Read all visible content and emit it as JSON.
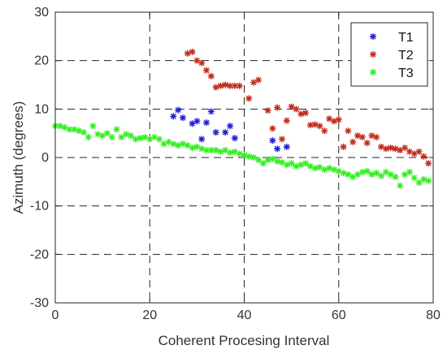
{
  "chart_data": {
    "type": "scatter",
    "xlabel": "Coherent Procesing Interval",
    "ylabel": "Azimuth (degrees)",
    "xlim": [
      0,
      80
    ],
    "ylim": [
      -30,
      30
    ],
    "xticks": [
      "0",
      "20",
      "40",
      "60",
      "80"
    ],
    "yticks": [
      "30",
      "20",
      "10",
      "0",
      "-10",
      "-20",
      "-30"
    ],
    "grid": true,
    "legend_position": "top-right",
    "marker": "asterisk",
    "series": [
      {
        "name": "T1",
        "color": "#1f1fd6",
        "points": [
          [
            25,
            8.5
          ],
          [
            26,
            9.8
          ],
          [
            27,
            8.2
          ],
          [
            29,
            7
          ],
          [
            30,
            7.5
          ],
          [
            31,
            3.8
          ],
          [
            32,
            7.2
          ],
          [
            33,
            9.5
          ],
          [
            34,
            5.2
          ],
          [
            36,
            5.2
          ],
          [
            37,
            6.5
          ],
          [
            38,
            4
          ],
          [
            46,
            3.5
          ],
          [
            47,
            1.8
          ],
          [
            49,
            2.2
          ]
        ]
      },
      {
        "name": "T2",
        "color": "#c42a1a",
        "points": [
          [
            28,
            21.5
          ],
          [
            29,
            21.8
          ],
          [
            30,
            20
          ],
          [
            31,
            19.5
          ],
          [
            32,
            18
          ],
          [
            33,
            16.8
          ],
          [
            34,
            14.5
          ],
          [
            35,
            14.8
          ],
          [
            36,
            15
          ],
          [
            37,
            14.8
          ],
          [
            38,
            14.8
          ],
          [
            39,
            14.8
          ],
          [
            41,
            12.2
          ],
          [
            42,
            15.5
          ],
          [
            43,
            16
          ],
          [
            45,
            9.7
          ],
          [
            46,
            6
          ],
          [
            47,
            10.3
          ],
          [
            48,
            3.8
          ],
          [
            49,
            7.6
          ],
          [
            50,
            10.5
          ],
          [
            51,
            10
          ],
          [
            52,
            9
          ],
          [
            53,
            9.2
          ],
          [
            54,
            6.7
          ],
          [
            55,
            6.8
          ],
          [
            56,
            6.5
          ],
          [
            57,
            5.5
          ],
          [
            58,
            8
          ],
          [
            59,
            7.5
          ],
          [
            60,
            7.8
          ],
          [
            61,
            2.2
          ],
          [
            62,
            5.5
          ],
          [
            63,
            3.2
          ],
          [
            64,
            4.5
          ],
          [
            65,
            4.2
          ],
          [
            66,
            3
          ],
          [
            67,
            4.5
          ],
          [
            68,
            4.2
          ],
          [
            69,
            2.2
          ],
          [
            70,
            1.8
          ],
          [
            71,
            2
          ],
          [
            72,
            1.8
          ],
          [
            73,
            1.5
          ],
          [
            74,
            2
          ],
          [
            75,
            1.2
          ],
          [
            76,
            0.8
          ],
          [
            77,
            1.2
          ],
          [
            78,
            0.2
          ],
          [
            79,
            -1.2
          ]
        ]
      },
      {
        "name": "T3",
        "color": "#33ee22",
        "points": [
          [
            0,
            6.5
          ],
          [
            1,
            6.5
          ],
          [
            2,
            6.2
          ],
          [
            3,
            5.8
          ],
          [
            4,
            5.8
          ],
          [
            5,
            5.5
          ],
          [
            6,
            5.2
          ],
          [
            7,
            4.2
          ],
          [
            8,
            6.5
          ],
          [
            9,
            4.8
          ],
          [
            10,
            4.5
          ],
          [
            11,
            5
          ],
          [
            12,
            4.2
          ],
          [
            13,
            5.8
          ],
          [
            14,
            4.2
          ],
          [
            15,
            4.8
          ],
          [
            16,
            4.5
          ],
          [
            17,
            3.8
          ],
          [
            18,
            4
          ],
          [
            19,
            4.2
          ],
          [
            20,
            3.8
          ],
          [
            21,
            4.2
          ],
          [
            22,
            3.8
          ],
          [
            23,
            2.8
          ],
          [
            24,
            3.2
          ],
          [
            25,
            2.8
          ],
          [
            26,
            2.5
          ],
          [
            27,
            2.8
          ],
          [
            28,
            2.5
          ],
          [
            29,
            2
          ],
          [
            30,
            2.2
          ],
          [
            31,
            1.8
          ],
          [
            32,
            1.5
          ],
          [
            33,
            1.5
          ],
          [
            34,
            1.5
          ],
          [
            35,
            1.2
          ],
          [
            36,
            1.5
          ],
          [
            37,
            1
          ],
          [
            38,
            1.2
          ],
          [
            39,
            0.8
          ],
          [
            40,
            0.5
          ],
          [
            41,
            0.2
          ],
          [
            42,
            0
          ],
          [
            43,
            -0.5
          ],
          [
            44,
            -1.2
          ],
          [
            45,
            -0.5
          ],
          [
            46,
            -0.3
          ],
          [
            47,
            -0.8
          ],
          [
            48,
            -1
          ],
          [
            49,
            -1.5
          ],
          [
            50,
            -1.2
          ],
          [
            51,
            -1.8
          ],
          [
            52,
            -1.5
          ],
          [
            53,
            -1.2
          ],
          [
            54,
            -1.8
          ],
          [
            55,
            -2.2
          ],
          [
            56,
            -2
          ],
          [
            57,
            -2.5
          ],
          [
            58,
            -2.2
          ],
          [
            59,
            -2.5
          ],
          [
            60,
            -2.8
          ],
          [
            61,
            -3.2
          ],
          [
            62,
            -3.5
          ],
          [
            63,
            -4
          ],
          [
            64,
            -3.5
          ],
          [
            65,
            -3
          ],
          [
            66,
            -2.8
          ],
          [
            67,
            -3.5
          ],
          [
            68,
            -3.2
          ],
          [
            69,
            -3.8
          ],
          [
            70,
            -3
          ],
          [
            71,
            -3.5
          ],
          [
            72,
            -4
          ],
          [
            73,
            -5.8
          ],
          [
            74,
            -3.5
          ],
          [
            75,
            -3
          ],
          [
            76,
            -4.2
          ],
          [
            77,
            -5.2
          ],
          [
            78,
            -4.5
          ],
          [
            79,
            -4.8
          ]
        ]
      }
    ]
  }
}
